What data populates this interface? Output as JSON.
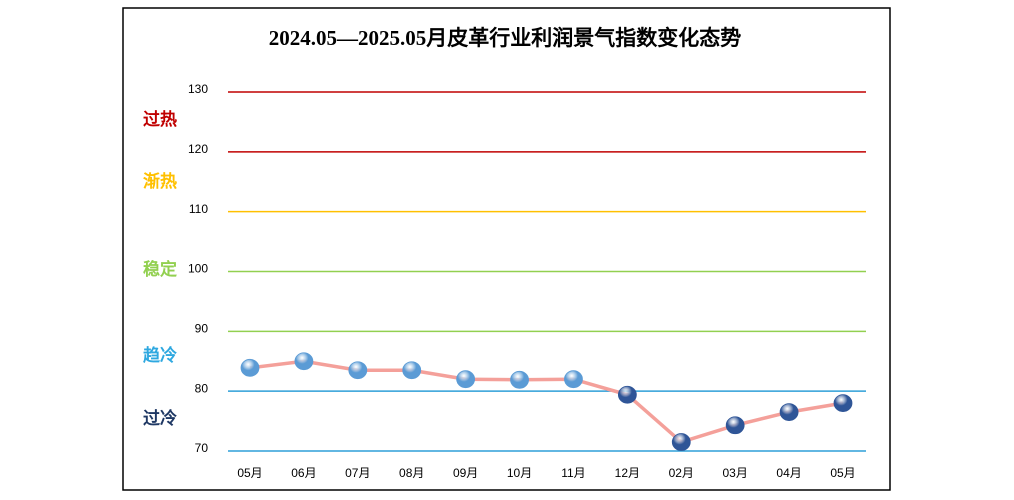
{
  "chart_data": {
    "type": "line",
    "title": "2024.05—2025.05月皮革行业利润景气指数变化态势",
    "categories": [
      "05月",
      "06月",
      "07月",
      "08月",
      "09月",
      "10月",
      "11月",
      "12月",
      "02月",
      "03月",
      "04月",
      "05月"
    ],
    "series": [
      {
        "name": "利润景气指数",
        "color": "#f4a09a",
        "values": [
          83.9,
          85.0,
          83.5,
          83.5,
          82.0,
          81.9,
          82.0,
          79.4,
          71.5,
          74.3,
          76.5,
          78.0
        ],
        "point_colors": [
          "#5b9bd5",
          "#5b9bd5",
          "#5b9bd5",
          "#5b9bd5",
          "#5b9bd5",
          "#5b9bd5",
          "#5b9bd5",
          "#2f5597",
          "#2f5597",
          "#2f5597",
          "#2f5597",
          "#2f5597"
        ]
      }
    ],
    "ylim": [
      70,
      130
    ],
    "yticks": [
      70,
      80,
      90,
      100,
      110,
      120,
      130
    ],
    "grid": true,
    "grid_colors": [
      "#2e9fd8",
      "#2e9fd8",
      "#92d050",
      "#92d050",
      "#ffc000",
      "#c00000",
      "#c00000"
    ],
    "zones": [
      {
        "label": "过热",
        "color": "#c00000"
      },
      {
        "label": "渐热",
        "color": "#ffc000"
      },
      {
        "label": "稳定",
        "color": "#92d050"
      },
      {
        "label": "趋冷",
        "color": "#2ea8e0"
      },
      {
        "label": "过冷",
        "color": "#1f3864"
      }
    ]
  }
}
